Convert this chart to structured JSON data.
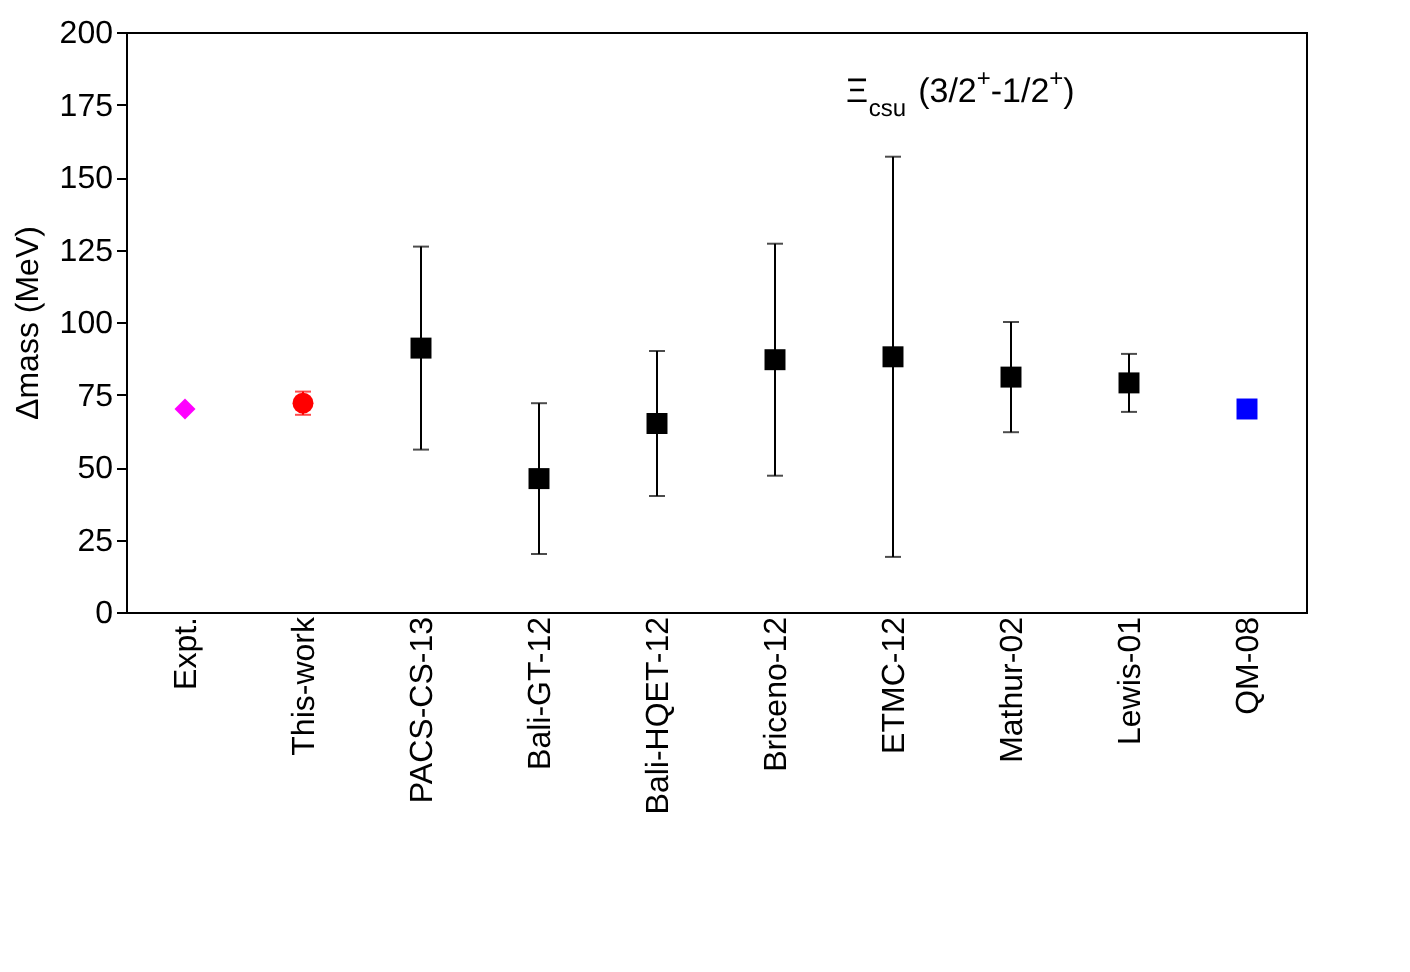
{
  "chart_data": {
    "type": "scatter",
    "ylabel": "Δmass (MeV)",
    "categories": [
      "Expt.",
      "This-work",
      "PACS-CS-13",
      "Bali-GT-12",
      "Bali-HQET-12",
      "Briceno-12",
      "ETMC-12",
      "Mathur-02",
      "Lewis-01",
      "QM-08"
    ],
    "series": [
      {
        "color": "#ff00ff",
        "marker": "diamond",
        "values": [
          70,
          null,
          null,
          null,
          null,
          null,
          null,
          null,
          null,
          null
        ]
      },
      {
        "color": "#ff0000",
        "marker": "circle",
        "values": [
          null,
          72,
          null,
          null,
          null,
          null,
          null,
          null,
          null,
          null
        ],
        "errors": [
          null,
          4,
          null,
          null,
          null,
          null,
          null,
          null,
          null,
          null
        ]
      },
      {
        "color": "#000000",
        "marker": "square",
        "values": [
          null,
          null,
          91,
          46,
          65,
          87,
          88,
          81,
          79,
          null
        ],
        "errors": [
          null,
          null,
          [
            56,
            126
          ],
          [
            20,
            72
          ],
          [
            40,
            90
          ],
          [
            47,
            127
          ],
          [
            19,
            157
          ],
          [
            62,
            100
          ],
          [
            69,
            89
          ],
          null
        ]
      },
      {
        "color": "#0000ff",
        "marker": "square",
        "values": [
          null,
          null,
          null,
          null,
          null,
          null,
          null,
          null,
          null,
          70
        ]
      }
    ],
    "ylim": [
      0,
      200
    ],
    "yticks": [
      0,
      25,
      50,
      75,
      100,
      125,
      150,
      175,
      200
    ],
    "grid": false,
    "annotations": [
      "Ξ$_{csu}$ (3/2$^{+}$-1/2$^{+}$)"
    ]
  }
}
